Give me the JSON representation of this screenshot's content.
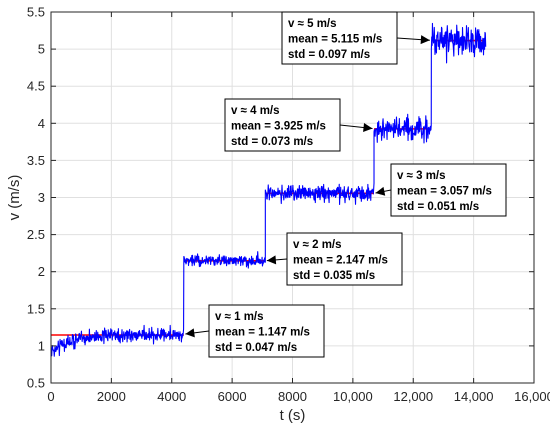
{
  "chart_data": {
    "type": "line",
    "xlabel": "t (s)",
    "ylabel": "v (m/s)",
    "xlim": [
      0,
      16000
    ],
    "ylim": [
      0.5,
      5.5
    ],
    "xticks": [
      0,
      2000,
      4000,
      6000,
      8000,
      10000,
      12000,
      14000,
      16000
    ],
    "xtick_labels": [
      "0",
      "2000",
      "4000",
      "6000",
      "8000",
      "10,000",
      "12,000",
      "14,000",
      "16,000"
    ],
    "yticks": [
      0.5,
      1,
      1.5,
      2,
      2.5,
      3,
      3.5,
      4,
      4.5,
      5,
      5.5
    ],
    "ytick_labels": [
      "0.5",
      "1",
      "1.5",
      "2",
      "2.5",
      "3",
      "3.5",
      "4",
      "4.5",
      "5",
      "5.5"
    ],
    "grid": true,
    "colors": {
      "signal": "#0000ff",
      "mean": "#ff0000",
      "axis": "#262626",
      "grid": "#e0e0e0"
    },
    "series": [
      {
        "segments": [
          {
            "t_start": 0,
            "t_end": 4400,
            "mean": 1.147,
            "std": 0.047
          },
          {
            "t_start": 4400,
            "t_end": 7100,
            "mean": 2.147,
            "std": 0.035
          },
          {
            "t_start": 7100,
            "t_end": 10700,
            "mean": 3.057,
            "std": 0.051
          },
          {
            "t_start": 10700,
            "t_end": 12600,
            "mean": 3.925,
            "std": 0.073
          },
          {
            "t_start": 12600,
            "t_end": 14400,
            "mean": 5.115,
            "std": 0.097
          }
        ]
      },
      {
        "segments": [
          {
            "t_start": 0,
            "t_end": 4400,
            "value": 1.147
          },
          {
            "t_start": 4400,
            "t_end": 7100,
            "value": 2.147
          },
          {
            "t_start": 7100,
            "t_end": 10700,
            "value": 3.057
          },
          {
            "t_start": 10700,
            "t_end": 12600,
            "value": 3.925
          },
          {
            "t_start": 12600,
            "t_end": 14400,
            "value": 5.115
          }
        ]
      }
    ],
    "annotations": [
      {
        "lines": [
          "v ≈ 1 m/s",
          "mean = 1.147 m/s",
          "std = 0.047 m/s"
        ],
        "arrow_to": [
          4450,
          1.16
        ]
      },
      {
        "lines": [
          "v ≈ 2 m/s",
          "mean = 2.147 m/s",
          "std = 0.035 m/s"
        ],
        "arrow_to": [
          7150,
          2.15
        ]
      },
      {
        "lines": [
          "v ≈ 3 m/s",
          "mean = 3.057 m/s",
          "std = 0.051 m/s"
        ],
        "arrow_to": [
          10750,
          3.06
        ]
      },
      {
        "lines": [
          "v ≈ 4 m/s",
          "mean = 3.925 m/s",
          "std = 0.073 m/s"
        ],
        "arrow_to": [
          10650,
          3.93
        ]
      },
      {
        "lines": [
          "v ≈ 5 m/s",
          "mean = 5.115 m/s",
          "std = 0.097 m/s"
        ],
        "arrow_to": [
          12550,
          5.12
        ]
      }
    ]
  }
}
